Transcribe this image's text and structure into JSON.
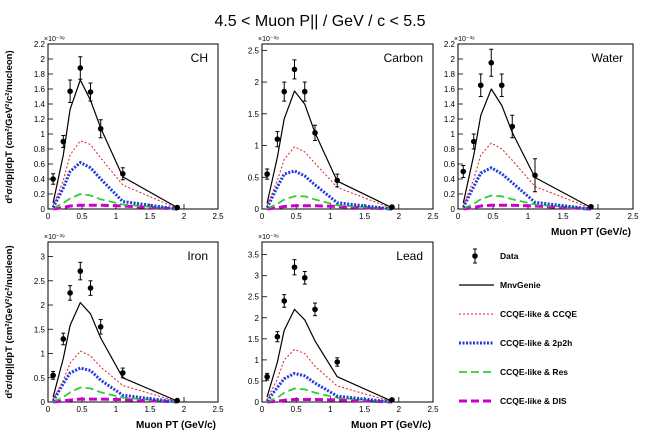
{
  "figure": {
    "title": "4.5 < Muon P|| / GeV / c < 5.5",
    "ylabel": "d²σ/dp||dpT (cm²/GeV²/c²/nucleon)",
    "xlabel": "Muon PT (GeV/c)",
    "exponent": "×10⁻³⁹"
  },
  "legend": [
    {
      "key": "data",
      "label": "Data",
      "color": "#000000",
      "dash": "",
      "width": 1.5,
      "marker": true
    },
    {
      "key": "mnv",
      "label": "MnvGenie",
      "color": "#000000",
      "dash": "",
      "width": 1.2,
      "marker": false
    },
    {
      "key": "ccqe",
      "label": "CCQE-like & CCQE",
      "color": "#e41a1c",
      "dash": "2,2",
      "width": 1,
      "marker": false
    },
    {
      "key": "2p2h",
      "label": "CCQE-like & 2p2h",
      "color": "#1f3bdd",
      "dash": "2,1.5",
      "width": 3,
      "marker": false
    },
    {
      "key": "res",
      "label": "CCQE-like & Res",
      "color": "#33cc33",
      "dash": "8,4",
      "width": 1.8,
      "marker": false
    },
    {
      "key": "dis",
      "label": "CCQE-like & DIS",
      "color": "#cc00cc",
      "dash": "8,4",
      "width": 3,
      "marker": false
    }
  ],
  "chart_data": [
    {
      "type": "line",
      "name": "CH",
      "title": "CH",
      "xlim": [
        0,
        2.5
      ],
      "ylim": [
        0,
        2.2
      ],
      "yticks": [
        0,
        0.2,
        0.4,
        0.6,
        0.8,
        1,
        1.2,
        1.4,
        1.6,
        1.8,
        2,
        2.2
      ],
      "ytick_labels": [
        "0",
        "0.2",
        "0.4",
        "0.6",
        "0.8",
        "1",
        "1.2",
        "1.4",
        "1.6",
        "1.8",
        "2",
        "2.2"
      ],
      "xticks": [
        0,
        0.5,
        1,
        1.5,
        2,
        2.5
      ],
      "xtick_labels": [
        "0",
        "0.5",
        "1",
        "1.5",
        "2",
        "2.5"
      ],
      "show_xlabel": false,
      "data": {
        "x": [
          0.075,
          0.225,
          0.325,
          0.475,
          0.625,
          0.775,
          1.1,
          1.9
        ],
        "y": [
          0.4,
          0.9,
          1.57,
          1.88,
          1.56,
          1.07,
          0.47,
          0.02
        ],
        "err": [
          0.07,
          0.08,
          0.15,
          0.15,
          0.12,
          0.12,
          0.08,
          0.01
        ]
      },
      "series": [
        {
          "key": "mnv",
          "values": [
            0.08,
            0.72,
            1.33,
            1.72,
            1.45,
            1.08,
            0.43,
            0.02
          ]
        },
        {
          "key": "ccqe",
          "values": [
            0.04,
            0.38,
            0.72,
            0.91,
            0.86,
            0.68,
            0.32,
            0.01
          ]
        },
        {
          "key": "2p2h",
          "values": [
            0.02,
            0.28,
            0.5,
            0.62,
            0.55,
            0.4,
            0.1,
            0.0
          ]
        },
        {
          "key": "res",
          "values": [
            0.01,
            0.08,
            0.14,
            0.2,
            0.18,
            0.13,
            0.06,
            0.0
          ]
        },
        {
          "key": "dis",
          "values": [
            0.0,
            0.02,
            0.04,
            0.05,
            0.05,
            0.05,
            0.04,
            0.0
          ]
        }
      ]
    },
    {
      "type": "line",
      "name": "Carbon",
      "title": "Carbon",
      "xlim": [
        0,
        2.5
      ],
      "ylim": [
        0,
        2.6
      ],
      "yticks": [
        0,
        0.5,
        1,
        1.5,
        2,
        2.5
      ],
      "ytick_labels": [
        "0",
        "0.5",
        "1",
        "1.5",
        "2",
        "2.5"
      ],
      "xticks": [
        0,
        0.5,
        1,
        1.5,
        2,
        2.5
      ],
      "xtick_labels": [
        "0",
        "0.5",
        "1",
        "1.5",
        "2",
        "2.5"
      ],
      "show_xlabel": false,
      "data": {
        "x": [
          0.075,
          0.225,
          0.325,
          0.475,
          0.625,
          0.775,
          1.1,
          1.9
        ],
        "y": [
          0.55,
          1.1,
          1.85,
          2.2,
          1.85,
          1.2,
          0.45,
          0.03
        ],
        "err": [
          0.08,
          0.12,
          0.15,
          0.15,
          0.15,
          0.12,
          0.1,
          0.01
        ]
      },
      "series": [
        {
          "key": "mnv",
          "values": [
            0.09,
            0.82,
            1.42,
            1.86,
            1.65,
            1.2,
            0.44,
            0.02
          ]
        },
        {
          "key": "ccqe",
          "values": [
            0.05,
            0.45,
            0.78,
            0.98,
            0.9,
            0.72,
            0.34,
            0.01
          ]
        },
        {
          "key": "2p2h",
          "values": [
            0.02,
            0.35,
            0.55,
            0.6,
            0.52,
            0.38,
            0.1,
            0.0
          ]
        },
        {
          "key": "res",
          "values": [
            0.01,
            0.08,
            0.15,
            0.2,
            0.2,
            0.15,
            0.06,
            0.0
          ]
        },
        {
          "key": "dis",
          "values": [
            0.0,
            0.02,
            0.04,
            0.05,
            0.05,
            0.05,
            0.04,
            0.0
          ]
        }
      ]
    },
    {
      "type": "line",
      "name": "Water",
      "title": "Water",
      "xlim": [
        0,
        2.5
      ],
      "ylim": [
        0,
        2.2
      ],
      "yticks": [
        0,
        0.2,
        0.4,
        0.6,
        0.8,
        1,
        1.2,
        1.4,
        1.6,
        1.8,
        2,
        2.2
      ],
      "ytick_labels": [
        "0",
        "0.2",
        "0.4",
        "0.6",
        "0.8",
        "1",
        "1.2",
        "1.4",
        "1.6",
        "1.8",
        "2",
        "2.2"
      ],
      "xticks": [
        0,
        0.5,
        1,
        1.5,
        2,
        2.5
      ],
      "xtick_labels": [
        "0",
        "0.5",
        "1",
        "1.5",
        "2",
        "2.5"
      ],
      "show_xlabel": true,
      "data": {
        "x": [
          0.075,
          0.225,
          0.325,
          0.475,
          0.625,
          0.775,
          1.1,
          1.9
        ],
        "y": [
          0.5,
          0.9,
          1.65,
          1.95,
          1.65,
          1.1,
          0.45,
          0.03
        ],
        "err": [
          0.08,
          0.1,
          0.15,
          0.18,
          0.15,
          0.15,
          0.22,
          0.01
        ]
      },
      "series": [
        {
          "key": "mnv",
          "values": [
            0.08,
            0.72,
            1.25,
            1.6,
            1.38,
            1.02,
            0.42,
            0.02
          ]
        },
        {
          "key": "ccqe",
          "values": [
            0.04,
            0.4,
            0.72,
            0.88,
            0.8,
            0.65,
            0.3,
            0.01
          ]
        },
        {
          "key": "2p2h",
          "values": [
            0.02,
            0.3,
            0.48,
            0.55,
            0.47,
            0.35,
            0.09,
            0.0
          ]
        },
        {
          "key": "res",
          "values": [
            0.01,
            0.07,
            0.13,
            0.18,
            0.17,
            0.13,
            0.06,
            0.0
          ]
        },
        {
          "key": "dis",
          "values": [
            0.0,
            0.02,
            0.04,
            0.05,
            0.05,
            0.05,
            0.04,
            0.0
          ]
        }
      ]
    },
    {
      "type": "line",
      "name": "Iron",
      "title": "Iron",
      "xlim": [
        0,
        2.5
      ],
      "ylim": [
        0,
        3.3
      ],
      "yticks": [
        0,
        0.5,
        1,
        1.5,
        2,
        2.5,
        3
      ],
      "ytick_labels": [
        "0",
        "0.5",
        "1",
        "1.5",
        "2",
        "2.5",
        "3"
      ],
      "xticks": [
        0,
        0.5,
        1,
        1.5,
        2,
        2.5
      ],
      "xtick_labels": [
        "0",
        "0.5",
        "1",
        "1.5",
        "2",
        "2.5"
      ],
      "show_xlabel": true,
      "data": {
        "x": [
          0.075,
          0.225,
          0.325,
          0.475,
          0.625,
          0.775,
          1.1,
          1.9
        ],
        "y": [
          0.55,
          1.3,
          2.25,
          2.7,
          2.35,
          1.55,
          0.6,
          0.03
        ],
        "err": [
          0.08,
          0.12,
          0.15,
          0.18,
          0.15,
          0.15,
          0.1,
          0.01
        ]
      },
      "series": [
        {
          "key": "mnv",
          "values": [
            0.1,
            0.9,
            1.58,
            2.05,
            1.82,
            1.32,
            0.5,
            0.02
          ]
        },
        {
          "key": "ccqe",
          "values": [
            0.05,
            0.45,
            0.8,
            1.05,
            0.95,
            0.72,
            0.34,
            0.01
          ]
        },
        {
          "key": "2p2h",
          "values": [
            0.02,
            0.38,
            0.6,
            0.7,
            0.65,
            0.45,
            0.14,
            0.0
          ]
        },
        {
          "key": "res",
          "values": [
            0.01,
            0.1,
            0.2,
            0.3,
            0.28,
            0.2,
            0.09,
            0.0
          ]
        },
        {
          "key": "dis",
          "values": [
            0.0,
            0.02,
            0.04,
            0.06,
            0.06,
            0.06,
            0.05,
            0.0
          ]
        }
      ]
    },
    {
      "type": "line",
      "name": "Lead",
      "title": "Lead",
      "xlim": [
        0,
        2.5
      ],
      "ylim": [
        0,
        3.8
      ],
      "yticks": [
        0,
        0.5,
        1,
        1.5,
        2,
        2.5,
        3,
        3.5
      ],
      "ytick_labels": [
        "0",
        "0.5",
        "1",
        "1.5",
        "2",
        "2.5",
        "3",
        "3.5"
      ],
      "xticks": [
        0,
        0.5,
        1,
        1.5,
        2,
        2.5
      ],
      "xtick_labels": [
        "0",
        "0.5",
        "1",
        "1.5",
        "2",
        "2.5"
      ],
      "show_xlabel": true,
      "data": {
        "x": [
          0.075,
          0.225,
          0.325,
          0.475,
          0.625,
          0.775,
          1.1,
          1.9
        ],
        "y": [
          0.6,
          1.55,
          2.4,
          3.2,
          2.95,
          2.2,
          0.95,
          0.05
        ],
        "err": [
          0.08,
          0.12,
          0.15,
          0.18,
          0.15,
          0.15,
          0.1,
          0.01
        ]
      },
      "series": [
        {
          "key": "mnv",
          "values": [
            0.12,
            0.95,
            1.7,
            2.2,
            1.95,
            1.45,
            0.6,
            0.02
          ]
        },
        {
          "key": "ccqe",
          "values": [
            0.06,
            0.55,
            1.0,
            1.25,
            1.15,
            0.85,
            0.38,
            0.01
          ]
        },
        {
          "key": "2p2h",
          "values": [
            0.02,
            0.35,
            0.55,
            0.68,
            0.62,
            0.45,
            0.14,
            0.0
          ]
        },
        {
          "key": "res",
          "values": [
            0.01,
            0.1,
            0.22,
            0.32,
            0.3,
            0.22,
            0.1,
            0.0
          ]
        },
        {
          "key": "dis",
          "values": [
            0.0,
            0.02,
            0.04,
            0.06,
            0.06,
            0.06,
            0.05,
            0.0
          ]
        }
      ]
    }
  ]
}
